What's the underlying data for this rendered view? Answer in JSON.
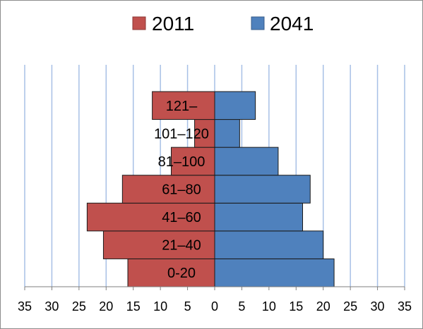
{
  "chart_data": {
    "type": "bar",
    "orientation": "horizontal",
    "layout": "population-pyramid",
    "categories": [
      "0-20",
      "21–40",
      "41–60",
      "61–80",
      "81–100",
      "101–120",
      "121–"
    ],
    "series": [
      {
        "name": "2011",
        "color": "#c0504d",
        "side": "left",
        "values": [
          16,
          20.5,
          23.5,
          17,
          8,
          3.7,
          11.5
        ]
      },
      {
        "name": "2041",
        "color": "#4f81bd",
        "side": "right",
        "values": [
          22,
          20,
          16.2,
          17.6,
          11.7,
          4.6,
          7.5
        ]
      }
    ],
    "x_ticks": [
      "35",
      "30",
      "25",
      "20",
      "15",
      "10",
      "5",
      "0",
      "5",
      "10",
      "15",
      "20",
      "25",
      "30",
      "35"
    ],
    "xlim": [
      -35,
      35
    ],
    "grid": "vertical",
    "grid_color": "#a7c0e6",
    "legend_position": "top"
  }
}
